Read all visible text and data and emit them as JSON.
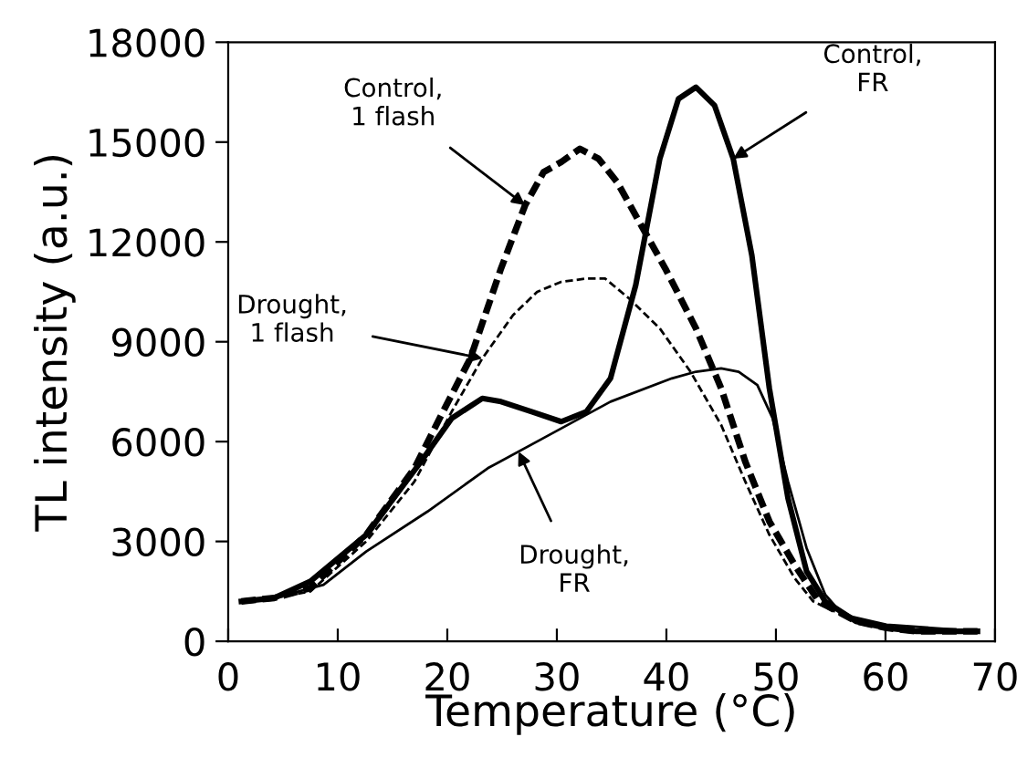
{
  "chart_data": {
    "type": "line",
    "xlabel": "Temperature (°C)",
    "ylabel": "TL intensity (a.u.)",
    "xlim": [
      0,
      70
    ],
    "xticks": [
      0,
      10,
      20,
      30,
      40,
      50,
      60,
      70
    ],
    "ylim": [
      0,
      18000
    ],
    "yticks": [
      0,
      3000,
      6000,
      9000,
      12000,
      15000,
      18000
    ],
    "grid": false,
    "marker": "none",
    "series": [
      {
        "color": "#000000",
        "line_style": "solid",
        "x": [
          1.2,
          4.2,
          7.5,
          12.6,
          17.6,
          20.4,
          23.2,
          24.9,
          27.7,
          30.4,
          32.7,
          34.9,
          37.2,
          39.4,
          41.1,
          42.7,
          44.4,
          46.1,
          47.8,
          49.4,
          51.1,
          52.8,
          54.5,
          57.3,
          60.1,
          62.8,
          68.4
        ],
        "values": [
          1200,
          1300,
          1800,
          3200,
          5400,
          6700,
          7300,
          7200,
          6900,
          6600,
          6900,
          7900,
          10700,
          14500,
          16300,
          16650,
          16100,
          14500,
          11600,
          7600,
          4300,
          2100,
          1200,
          600,
          400,
          300,
          300
        ]
      },
      {
        "color": "#000000",
        "line_style": "dashed",
        "x": [
          1.2,
          4.2,
          7.5,
          12.6,
          17.0,
          19.3,
          22.1,
          24.9,
          27.1,
          28.8,
          30.4,
          32.1,
          33.8,
          35.5,
          37.7,
          39.9,
          42.7,
          45.0,
          47.2,
          49.4,
          51.7,
          53.9,
          57.3,
          60.1,
          62.8,
          68.4
        ],
        "values": [
          1200,
          1300,
          1600,
          3200,
          5200,
          6700,
          8500,
          11200,
          13100,
          14100,
          14400,
          14800,
          14500,
          13800,
          12500,
          11200,
          9400,
          7600,
          5400,
          3600,
          2300,
          1200,
          600,
          400,
          300,
          300
        ]
      },
      {
        "color": "#000000",
        "line_style": "dashed",
        "x": [
          1.2,
          4.2,
          7.5,
          12.6,
          17.0,
          20.4,
          23.2,
          26.0,
          28.2,
          30.4,
          32.7,
          34.4,
          36.6,
          39.4,
          42.2,
          45.0,
          47.2,
          49.4,
          51.7,
          53.4,
          57.3,
          60.1,
          62.8,
          68.4
        ],
        "values": [
          1200,
          1300,
          1500,
          3000,
          4800,
          6900,
          8500,
          9800,
          10500,
          10800,
          10900,
          10900,
          10300,
          9400,
          8100,
          6500,
          4800,
          3200,
          1900,
          1200,
          600,
          400,
          300,
          300
        ]
      },
      {
        "color": "#000000",
        "line_style": "solid",
        "x": [
          1.2,
          4.2,
          8.7,
          12.6,
          18.2,
          23.7,
          29.3,
          34.9,
          40.5,
          42.7,
          45.0,
          46.6,
          48.3,
          49.7,
          51.1,
          52.8,
          54.5,
          56.1,
          60.1,
          68.4
        ],
        "values": [
          1200,
          1300,
          1700,
          2700,
          3900,
          5200,
          6200,
          7200,
          7900,
          8100,
          8200,
          8100,
          7700,
          6700,
          4800,
          2800,
          1400,
          800,
          500,
          300
        ]
      }
    ],
    "annotations": [
      {
        "text": "Control,\nFR",
        "x": 46.1,
        "y": 14500
      },
      {
        "text": "Control,\n1 flash",
        "x": 27.1,
        "y": 13100
      },
      {
        "text": "Drought,\n1 flash",
        "x": 23.2,
        "y": 8500
      },
      {
        "text": "Drought,\nFR",
        "x": 26.5,
        "y": 5700
      }
    ]
  }
}
